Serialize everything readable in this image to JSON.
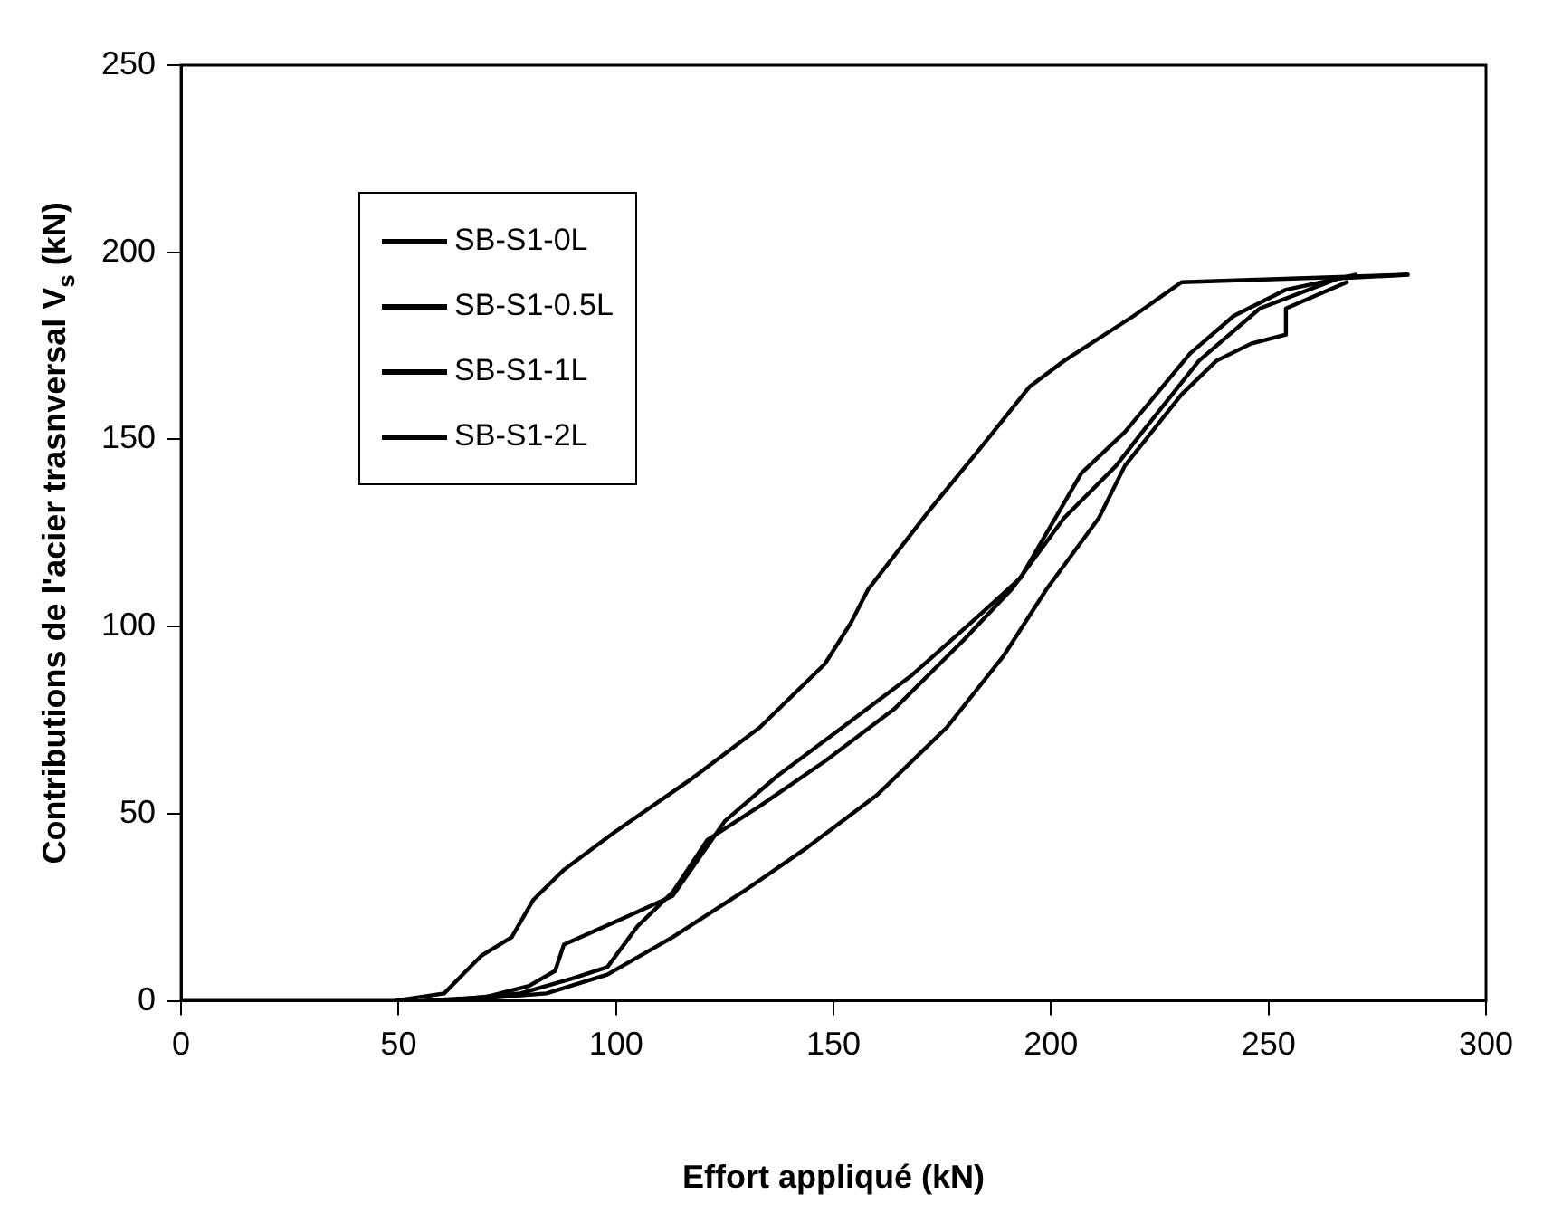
{
  "chart_data": {
    "type": "line",
    "xlabel": "Effort appliqué (kN)",
    "ylabel": "Contributions de l'acier trasnversal V$_{s}$ (kN)",
    "xlim": [
      0,
      300
    ],
    "xticks": [
      0,
      50,
      100,
      150,
      200,
      250,
      300
    ],
    "ylim": [
      0,
      250
    ],
    "yticks": [
      0,
      50,
      100,
      150,
      200,
      250
    ],
    "grid": false,
    "legend": "top left",
    "marker": "none",
    "line_style": "solid",
    "series": [
      {
        "name": "SB-S1-0L",
        "color": "#000000",
        "x": [
          0,
          49,
          60.5,
          69,
          76,
          81,
          88,
          99.6,
          117,
          133,
          148,
          154,
          158,
          172,
          184,
          195,
          203,
          219,
          230,
          282
        ],
        "values": [
          0,
          0,
          2,
          12,
          17,
          27,
          35,
          45,
          59,
          73,
          90,
          101,
          110,
          131,
          148,
          164,
          171,
          183,
          192,
          194
        ]
      },
      {
        "name": "SB-S1-0.5L",
        "color": "#000000",
        "x": [
          55,
          70,
          80,
          86,
          88,
          101.5,
          113,
          125,
          137,
          152,
          168,
          184,
          193,
          207,
          217,
          232,
          242,
          254,
          270
        ],
        "values": [
          0,
          1,
          4,
          8,
          15,
          22,
          28,
          48,
          60,
          73,
          87,
          103.5,
          113,
          141,
          152,
          173,
          183,
          190,
          194
        ]
      },
      {
        "name": "SB-S1-1L",
        "color": "#000000",
        "x": [
          60,
          78,
          90,
          98,
          105,
          113,
          121,
          133,
          148,
          164,
          180,
          191,
          203,
          215,
          221,
          234,
          248,
          266,
          282
        ],
        "values": [
          0,
          2,
          6,
          9,
          20,
          29,
          43,
          52,
          64,
          78,
          96.5,
          110,
          129,
          143,
          152,
          171,
          185,
          193,
          194
        ]
      },
      {
        "name": "SB-S1-2L",
        "color": "#000000",
        "x": [
          62.5,
          84,
          98,
          113,
          129,
          144,
          160,
          176,
          189,
          199,
          211,
          217,
          230,
          238,
          246,
          254,
          254,
          268
        ],
        "values": [
          0,
          2,
          7,
          17,
          29,
          41,
          55,
          73,
          92,
          110,
          129,
          143,
          162,
          171,
          175.6,
          178,
          185,
          192
        ]
      }
    ]
  }
}
